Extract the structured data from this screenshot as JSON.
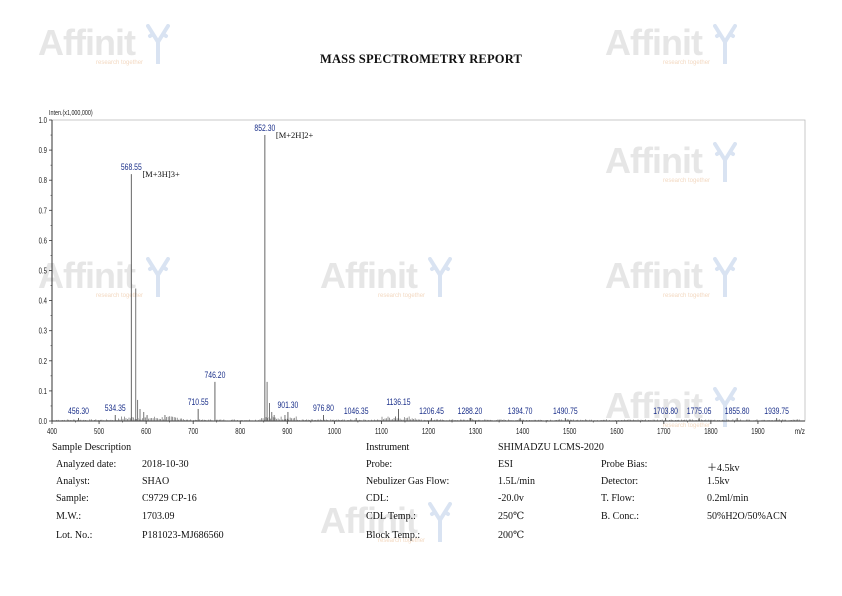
{
  "report": {
    "title": "MASS SPECTROMETRY REPORT"
  },
  "watermark": {
    "brand": "Affinit",
    "tagline": "research together"
  },
  "chart_data": {
    "type": "bar",
    "ylabel": "Inten.(x1,000,000)",
    "xlabel": "m/z",
    "xlim": [
      400,
      2000
    ],
    "ylim": [
      0,
      1.0
    ],
    "xticks": [
      400,
      500,
      600,
      700,
      800,
      900,
      1000,
      1100,
      1200,
      1300,
      1400,
      1500,
      1600,
      1700,
      1800,
      1900
    ],
    "yticks": [
      "0.0",
      "0.1",
      "0.2",
      "0.3",
      "0.4",
      "0.5",
      "0.6",
      "0.7",
      "0.8",
      "0.9",
      "1.0"
    ],
    "labeled_peaks": [
      {
        "mz": 456.3,
        "label": "456.30",
        "intensity": 0.01
      },
      {
        "mz": 534.35,
        "label": "534.35",
        "intensity": 0.02
      },
      {
        "mz": 568.55,
        "label": "568.55",
        "intensity": 0.82
      },
      {
        "mz": 710.55,
        "label": "710.55",
        "intensity": 0.04
      },
      {
        "mz": 746.2,
        "label": "746.20",
        "intensity": 0.13
      },
      {
        "mz": 852.3,
        "label": "852.30",
        "intensity": 0.95
      },
      {
        "mz": 901.3,
        "label": "901.30",
        "intensity": 0.03
      },
      {
        "mz": 976.8,
        "label": "976.80",
        "intensity": 0.02
      },
      {
        "mz": 1046.35,
        "label": "1046.35",
        "intensity": 0.01
      },
      {
        "mz": 1136.15,
        "label": "1136.15",
        "intensity": 0.04
      },
      {
        "mz": 1206.45,
        "label": "1206.45",
        "intensity": 0.01
      },
      {
        "mz": 1288.2,
        "label": "1288.20",
        "intensity": 0.01
      },
      {
        "mz": 1394.7,
        "label": "1394.70",
        "intensity": 0.01
      },
      {
        "mz": 1490.75,
        "label": "1490.75",
        "intensity": 0.01
      },
      {
        "mz": 1703.8,
        "label": "1703.80",
        "intensity": 0.01
      },
      {
        "mz": 1775.05,
        "label": "1775.05",
        "intensity": 0.01
      },
      {
        "mz": 1855.8,
        "label": "1855.80",
        "intensity": 0.01
      },
      {
        "mz": 1939.75,
        "label": "1939.75",
        "intensity": 0.01
      }
    ],
    "minor_peaks": [
      {
        "mz": 578,
        "intensity": 0.44
      },
      {
        "mz": 582,
        "intensity": 0.07
      },
      {
        "mz": 587,
        "intensity": 0.04
      },
      {
        "mz": 595,
        "intensity": 0.03
      },
      {
        "mz": 602,
        "intensity": 0.02
      },
      {
        "mz": 640,
        "intensity": 0.02
      },
      {
        "mz": 857,
        "intensity": 0.13
      },
      {
        "mz": 862,
        "intensity": 0.06
      },
      {
        "mz": 867,
        "intensity": 0.03
      },
      {
        "mz": 872,
        "intensity": 0.02
      },
      {
        "mz": 895,
        "intensity": 0.02
      },
      {
        "mz": 1130,
        "intensity": 0.015
      },
      {
        "mz": 1290,
        "intensity": 0.01
      }
    ],
    "annotations": [
      {
        "text": "[M+3H]3+",
        "mz": 568.55,
        "intensity": 0.82
      },
      {
        "text": "[M+2H]2+",
        "mz": 852.3,
        "intensity": 0.95
      }
    ],
    "colors": {
      "peak_label": "#1a2f8a",
      "axis": "#333333",
      "trace": "#555555"
    }
  },
  "sample": {
    "heading": "Sample Description",
    "rows": [
      {
        "label": "Analyzed date:",
        "value": "2018-10-30"
      },
      {
        "label": "Analyst:",
        "value": "SHAO"
      },
      {
        "label": "Sample:",
        "value": "C9729 CP-16"
      },
      {
        "label": "M.W.:",
        "value": "1703.09"
      },
      {
        "label": "Lot. No.:",
        "value": "P181023-MJ686560"
      }
    ]
  },
  "instrument": {
    "heading": "Instrument",
    "model": "SHIMADZU LCMS-2020",
    "rows": [
      {
        "label": "Probe:",
        "value": "ESI",
        "label2": "Probe Bias:",
        "value2": "＋4.5kv"
      },
      {
        "label": "Nebulizer Gas Flow:",
        "value": "1.5L/min",
        "label2": "Detector:",
        "value2": "1.5kv"
      },
      {
        "label": "CDL:",
        "value": "-20.0v",
        "label2": "T. Flow:",
        "value2": "0.2ml/min"
      },
      {
        "label": "CDL Temp.:",
        "value": "250℃",
        "label2": "B. Conc.:",
        "value2": "50%H2O/50%ACN"
      },
      {
        "label": "Block Temp.:",
        "value": "200℃",
        "label2": "",
        "value2": ""
      }
    ]
  }
}
